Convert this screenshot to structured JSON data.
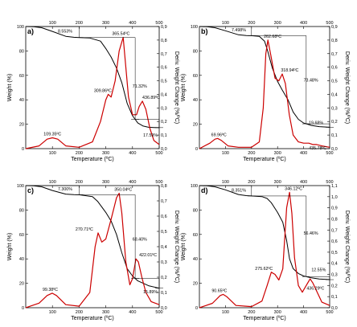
{
  "chart_data": [
    {
      "type": "line",
      "panel_label": "a)",
      "xlabel": "Temperature (ºC)",
      "ylabel": "Weight (%)",
      "y2label": "Deriv. Weight Change (%/ºC)",
      "xlim": [
        0,
        500
      ],
      "ylim": [
        0,
        100
      ],
      "y2lim": [
        0,
        0.9
      ],
      "x_ticks": [
        100,
        200,
        300,
        400,
        500
      ],
      "y_ticks": [
        0,
        20,
        40,
        60,
        80,
        100
      ],
      "y2_ticks": [
        "0,0",
        "0,1",
        "0,2",
        "0,3",
        "0,4",
        "0,5",
        "0,6",
        "0,7",
        "0,8",
        "0,9"
      ],
      "y2_ticks_values": [
        0,
        0.1,
        0.2,
        0.3,
        0.4,
        0.5,
        0.6,
        0.7,
        0.8,
        0.9
      ],
      "series": [
        {
          "role": "weight",
          "color": "#000000",
          "x": [
            0,
            30,
            60,
            100,
            150,
            180,
            200,
            240,
            280,
            300,
            320,
            340,
            360,
            380,
            400,
            420,
            440,
            460,
            480,
            500
          ],
          "y": [
            100,
            99.8,
            99,
            96,
            92,
            91.2,
            91,
            90.6,
            88,
            82,
            75,
            66,
            54,
            37,
            27,
            21,
            18.5,
            17.5,
            17.3,
            17.2
          ]
        },
        {
          "role": "derivative",
          "color": "#cc0000",
          "x": [
            0,
            50,
            80,
            100,
            120,
            150,
            200,
            250,
            280,
            300,
            309,
            320,
            335,
            350,
            365,
            375,
            385,
            400,
            415,
            425,
            437,
            450,
            465,
            480,
            500
          ],
          "y": [
            0,
            0.02,
            0.07,
            0.08,
            0.07,
            0.02,
            0.01,
            0.05,
            0.2,
            0.36,
            0.4,
            0.38,
            0.5,
            0.72,
            0.82,
            0.6,
            0.38,
            0.25,
            0.25,
            0.31,
            0.35,
            0.29,
            0.15,
            0.06,
            0.03
          ]
        }
      ],
      "annotations": [
        {
          "text": "109.35ºC",
          "x": 109.35,
          "y": 0.08,
          "axis": "y2"
        },
        {
          "text": "309.86ºC",
          "x": 309.86,
          "y": 0.4,
          "axis": "y2"
        },
        {
          "text": "365.54ºC",
          "x": 365.54,
          "y": 0.82,
          "axis": "y2"
        },
        {
          "text": "436.89ºC",
          "x": 436.89,
          "y": 0.35,
          "axis": "y2"
        },
        {
          "text": "8.553%",
          "x": 200,
          "y": 95,
          "axis": "y"
        },
        {
          "text": "71.32%",
          "x": 400,
          "y": 50,
          "axis": "y"
        },
        {
          "text": "17.59%",
          "x": 440,
          "y": 10,
          "axis": "y"
        }
      ]
    },
    {
      "type": "line",
      "panel_label": "b)",
      "xlabel": "Temperature (ºC)",
      "ylabel": "Weight (%)",
      "y2label": "Deriv. Weight Change (%/ºC)",
      "xlim": [
        0,
        500
      ],
      "ylim": [
        0,
        100
      ],
      "y2lim": [
        0,
        0.9
      ],
      "x_ticks": [
        100,
        200,
        300,
        400,
        500
      ],
      "y_ticks": [
        0,
        20,
        40,
        60,
        80,
        100
      ],
      "y2_ticks": [
        "0,0",
        "0,1",
        "0,2",
        "0,3",
        "0,4",
        "0,5",
        "0,6",
        "0,7",
        "0,8",
        "0,9"
      ],
      "y2_ticks_values": [
        0,
        0.1,
        0.2,
        0.3,
        0.4,
        0.5,
        0.6,
        0.7,
        0.8,
        0.9
      ],
      "series": [
        {
          "role": "weight",
          "color": "#000000",
          "x": [
            0,
            30,
            60,
            100,
            150,
            180,
            200,
            230,
            250,
            262,
            280,
            300,
            318,
            340,
            360,
            380,
            400,
            430,
            460,
            500
          ],
          "y": [
            100,
            99.8,
            99,
            96.5,
            93.2,
            92.6,
            92.5,
            92,
            88,
            80,
            66,
            55,
            48,
            40,
            30,
            24,
            21,
            19,
            18,
            17.5
          ]
        },
        {
          "role": "derivative",
          "color": "#cc0000",
          "x": [
            0,
            40,
            60,
            70,
            85,
            110,
            150,
            200,
            230,
            245,
            255,
            263,
            275,
            290,
            305,
            318,
            330,
            345,
            360,
            380,
            400,
            420,
            436,
            450,
            470,
            500
          ],
          "y": [
            0,
            0.04,
            0.07,
            0.075,
            0.06,
            0.02,
            0.01,
            0.01,
            0.05,
            0.3,
            0.7,
            0.8,
            0.68,
            0.52,
            0.5,
            0.55,
            0.48,
            0.25,
            0.1,
            0.05,
            0.04,
            0.04,
            0.03,
            0.03,
            0.02,
            0.01
          ]
        }
      ],
      "annotations": [
        {
          "text": "69.96ºC",
          "x": 69.96,
          "y": 0.075,
          "axis": "y2"
        },
        {
          "text": "262.68ºC",
          "x": 262.68,
          "y": 0.8,
          "axis": "y2"
        },
        {
          "text": "318.94ºC",
          "x": 318.94,
          "y": 0.55,
          "axis": "y2"
        },
        {
          "text": "435.78ºC",
          "x": 435.78,
          "y": 0.03,
          "axis": "y2"
        },
        {
          "text": "7.498%",
          "x": 200,
          "y": 96,
          "axis": "y"
        },
        {
          "text": "73.48%",
          "x": 400,
          "y": 55,
          "axis": "y"
        },
        {
          "text": "19.68%",
          "x": 420,
          "y": 20,
          "axis": "y"
        }
      ]
    },
    {
      "type": "line",
      "panel_label": "c)",
      "xlabel": "Temperature (ºC)",
      "ylabel": "Weight (%)",
      "y2label": "Deriv. Weight Change (%/ºC)",
      "xlim": [
        0,
        500
      ],
      "ylim": [
        0,
        100
      ],
      "y2lim": [
        0,
        0.8
      ],
      "x_ticks": [
        100,
        200,
        300,
        400,
        500
      ],
      "y_ticks": [
        0,
        20,
        40,
        60,
        80,
        100
      ],
      "y2_ticks": [
        "0,0",
        "0,1",
        "0,2",
        "0,3",
        "0,4",
        "0,5",
        "0,6",
        "0,7",
        "0,8"
      ],
      "y2_ticks_values": [
        0,
        0.1,
        0.2,
        0.3,
        0.4,
        0.5,
        0.6,
        0.7,
        0.8
      ],
      "series": [
        {
          "role": "weight",
          "color": "#000000",
          "x": [
            0,
            30,
            60,
            100,
            150,
            180,
            200,
            250,
            270,
            300,
            320,
            340,
            360,
            380,
            400,
            420,
            440,
            460,
            500
          ],
          "y": [
            100,
            99.8,
            99,
            96,
            93,
            92.6,
            92.5,
            91,
            87,
            78,
            71,
            60,
            45,
            32,
            26,
            22,
            20,
            18,
            16
          ]
        },
        {
          "role": "derivative",
          "color": "#cc0000",
          "x": [
            0,
            50,
            80,
            99,
            115,
            150,
            200,
            240,
            260,
            271,
            285,
            300,
            320,
            340,
            350,
            360,
            375,
            390,
            400,
            413,
            422,
            435,
            450,
            470,
            500
          ],
          "y": [
            0,
            0.03,
            0.08,
            0.095,
            0.08,
            0.02,
            0.01,
            0.1,
            0.4,
            0.49,
            0.43,
            0.45,
            0.58,
            0.72,
            0.75,
            0.62,
            0.3,
            0.15,
            0.19,
            0.32,
            0.3,
            0.2,
            0.1,
            0.04,
            0.02
          ]
        }
      ],
      "annotations": [
        {
          "text": "99.38ºC",
          "x": 99.38,
          "y": 0.095,
          "axis": "y2"
        },
        {
          "text": "270.71ºC",
          "x": 270.71,
          "y": 0.49,
          "axis": "y2"
        },
        {
          "text": "350.04ºC",
          "x": 350.04,
          "y": 0.75,
          "axis": "y2"
        },
        {
          "text": "422.01ºC",
          "x": 422.01,
          "y": 0.32,
          "axis": "y2"
        },
        {
          "text": "7.300%",
          "x": 200,
          "y": 96,
          "axis": "y"
        },
        {
          "text": "68.40%",
          "x": 400,
          "y": 55,
          "axis": "y"
        },
        {
          "text": "15.89%",
          "x": 440,
          "y": 12,
          "axis": "y"
        }
      ]
    },
    {
      "type": "line",
      "panel_label": "d)",
      "xlabel": "Temperature (ºC)",
      "ylabel": "Weight (%)",
      "y2label": "Deriv. Weight Change (%/ºC)",
      "xlim": [
        0,
        500
      ],
      "ylim": [
        0,
        100
      ],
      "y2lim": [
        0,
        1.1
      ],
      "x_ticks": [
        100,
        200,
        300,
        400,
        500
      ],
      "y_ticks": [
        0,
        20,
        40,
        60,
        80,
        100
      ],
      "y2_ticks": [
        "0,0",
        "0,1",
        "0,2",
        "0,3",
        "0,4",
        "0,5",
        "0,6",
        "0,7",
        "0,8",
        "0,9",
        "1,0",
        "1,1"
      ],
      "y2_ticks_values": [
        0,
        0.1,
        0.2,
        0.3,
        0.4,
        0.5,
        0.6,
        0.7,
        0.8,
        0.9,
        1.0,
        1.1
      ],
      "series": [
        {
          "role": "weight",
          "color": "#000000",
          "x": [
            0,
            30,
            60,
            100,
            150,
            180,
            200,
            240,
            260,
            276,
            300,
            320,
            335,
            346,
            360,
            380,
            400,
            430,
            460,
            500
          ],
          "y": [
            100,
            99.8,
            99,
            96.5,
            92.7,
            91.8,
            91.5,
            91,
            89.5,
            86,
            78,
            70,
            55,
            40,
            32,
            28,
            26,
            24.5,
            23.5,
            23
          ]
        },
        {
          "role": "derivative",
          "color": "#cc0000",
          "x": [
            0,
            50,
            80,
            91,
            105,
            140,
            200,
            240,
            260,
            276,
            290,
            305,
            320,
            335,
            346,
            355,
            365,
            380,
            395,
            410,
            425,
            436,
            450,
            470,
            500
          ],
          "y": [
            0,
            0.04,
            0.11,
            0.12,
            0.1,
            0.02,
            0.01,
            0.06,
            0.2,
            0.32,
            0.3,
            0.25,
            0.35,
            0.9,
            1.04,
            0.85,
            0.45,
            0.2,
            0.14,
            0.2,
            0.26,
            0.22,
            0.15,
            0.05,
            0.02
          ]
        }
      ],
      "annotations": [
        {
          "text": "90.65ºC",
          "x": 90.65,
          "y": 0.12,
          "axis": "y2"
        },
        {
          "text": "275.62ºC",
          "x": 275.62,
          "y": 0.32,
          "axis": "y2"
        },
        {
          "text": "346.12ºC",
          "x": 346.12,
          "y": 1.04,
          "axis": "y2"
        },
        {
          "text": "436.29ºC",
          "x": 436.29,
          "y": 0.22,
          "axis": "y2"
        },
        {
          "text": "8.351%",
          "x": 200,
          "y": 95,
          "axis": "y"
        },
        {
          "text": "56.46%",
          "x": 400,
          "y": 60,
          "axis": "y"
        },
        {
          "text": "12.55%",
          "x": 430,
          "y": 30,
          "axis": "y"
        }
      ]
    }
  ]
}
